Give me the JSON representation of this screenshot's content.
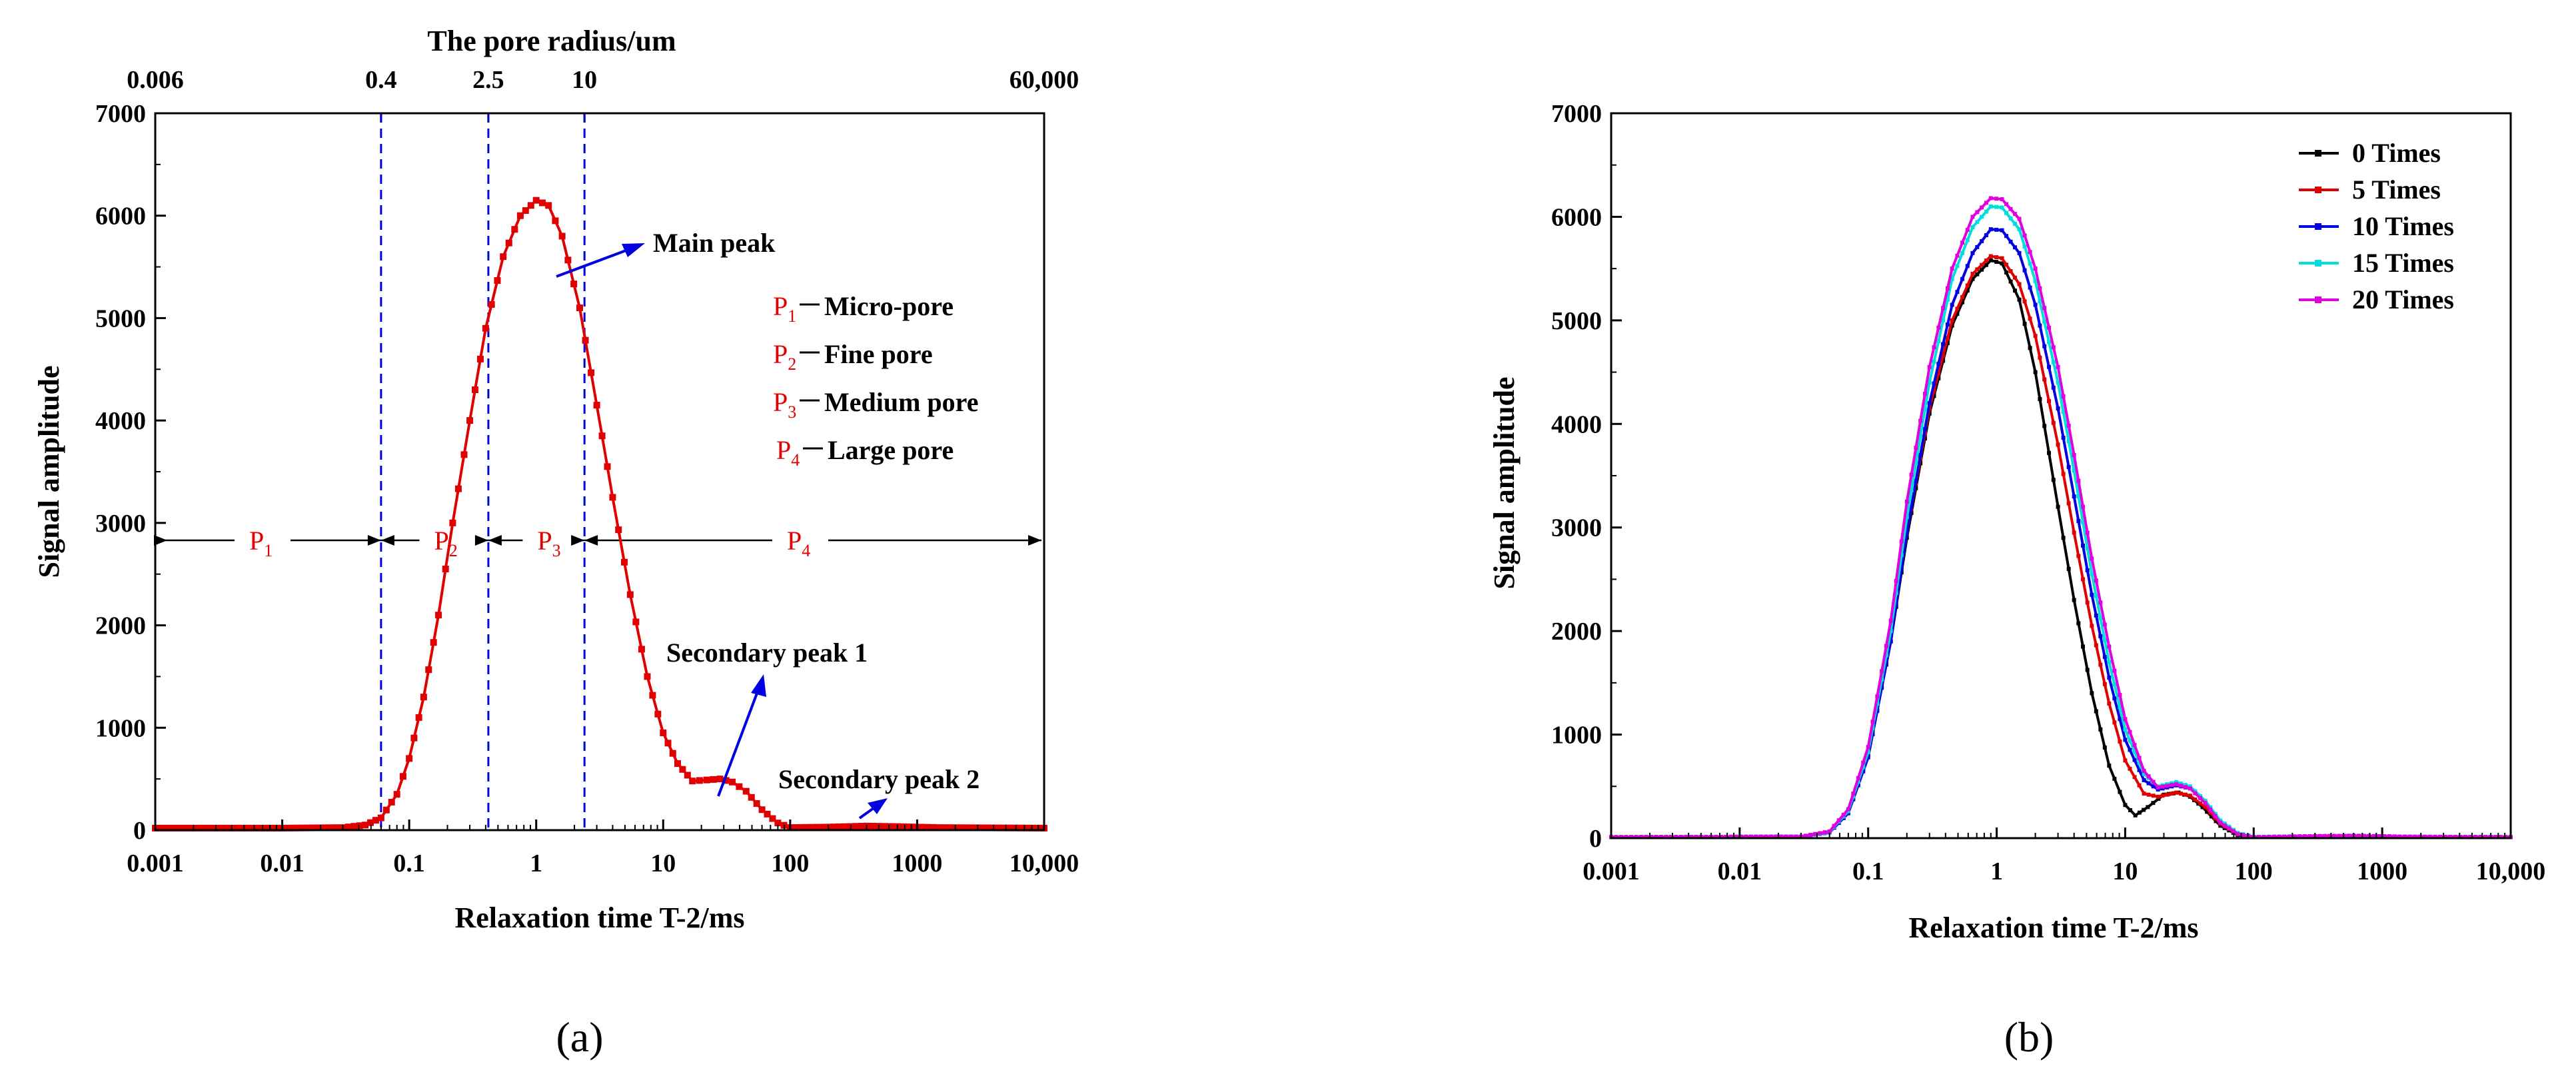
{
  "chart_data": [
    {
      "panel": "a",
      "type": "line",
      "panel_label": "(a)",
      "top_axis": {
        "label": "The pore radius/um",
        "tick_labels": [
          {
            "text": "0.006",
            "at_x": 0.001
          },
          {
            "text": "0.4",
            "at_x": 0.06
          },
          {
            "text": "2.5",
            "at_x": 0.42
          },
          {
            "text": "10",
            "at_x": 2.4
          },
          {
            "text": "60,000",
            "at_x": 10000
          }
        ]
      },
      "xlabel": "Relaxation time T-2/ms",
      "ylabel": "Signal amplitude",
      "xscale": "log",
      "xlim": [
        0.001,
        10000
      ],
      "ylim": [
        0,
        7000
      ],
      "x_tick_labels": [
        "0.001",
        "0.01",
        "0.1",
        "1",
        "10",
        "100",
        "1000",
        "10,000"
      ],
      "y_tick_labels": [
        "0",
        "1000",
        "2000",
        "3000",
        "4000",
        "5000",
        "6000",
        "7000"
      ],
      "boundaries_x": [
        0.06,
        0.42,
        2.4
      ],
      "series": [
        {
          "color": "#e00000",
          "points": [
            [
              0.001,
              20
            ],
            [
              0.01,
              20
            ],
            [
              0.03,
              25
            ],
            [
              0.045,
              50
            ],
            [
              0.06,
              120
            ],
            [
              0.08,
              350
            ],
            [
              0.1,
              700
            ],
            [
              0.13,
              1300
            ],
            [
              0.17,
              2100
            ],
            [
              0.22,
              3000
            ],
            [
              0.3,
              4000
            ],
            [
              0.4,
              4900
            ],
            [
              0.55,
              5600
            ],
            [
              0.75,
              6000
            ],
            [
              1.0,
              6150
            ],
            [
              1.25,
              6100
            ],
            [
              1.6,
              5800
            ],
            [
              2.2,
              5100
            ],
            [
              3.0,
              4150
            ],
            [
              4.0,
              3250
            ],
            [
              5.5,
              2300
            ],
            [
              7.5,
              1500
            ],
            [
              10,
              950
            ],
            [
              13,
              650
            ],
            [
              17,
              480
            ],
            [
              22,
              490
            ],
            [
              28,
              500
            ],
            [
              35,
              470
            ],
            [
              45,
              380
            ],
            [
              60,
              200
            ],
            [
              80,
              70
            ],
            [
              100,
              25
            ],
            [
              200,
              30
            ],
            [
              400,
              40
            ],
            [
              700,
              35
            ],
            [
              1500,
              25
            ],
            [
              10000,
              20
            ]
          ]
        }
      ],
      "pore_classes": [
        {
          "symbol": "P",
          "sub": "1",
          "name": "Micro-pore"
        },
        {
          "symbol": "P",
          "sub": "2",
          "name": "Fine pore"
        },
        {
          "symbol": "P",
          "sub": "3",
          "name": "Medium pore"
        },
        {
          "symbol": "P",
          "sub": "4",
          "name": "Large pore"
        }
      ],
      "range_arrows_y": 2830,
      "range_labels": [
        {
          "symbol": "P",
          "sub": "1",
          "at_x": 0.007
        },
        {
          "symbol": "P",
          "sub": "2",
          "at_x": 0.2
        },
        {
          "symbol": "P",
          "sub": "3",
          "at_x": 1.3
        },
        {
          "symbol": "P",
          "sub": "4",
          "at_x": 120
        }
      ],
      "annotations": [
        {
          "text": "Main peak"
        },
        {
          "text": "Secondary peak 1"
        },
        {
          "text": "Secondary peak 2"
        }
      ]
    },
    {
      "panel": "b",
      "type": "line",
      "panel_label": "(b)",
      "xlabel": "Relaxation time T-2/ms",
      "ylabel": "Signal amplitude",
      "xscale": "log",
      "xlim": [
        0.001,
        10000
      ],
      "ylim": [
        0,
        7000
      ],
      "x_tick_labels": [
        "0.001",
        "0.01",
        "0.1",
        "1",
        "10",
        "100",
        "1000",
        "10,000"
      ],
      "y_tick_labels": [
        "0",
        "1000",
        "2000",
        "3000",
        "4000",
        "5000",
        "6000",
        "7000"
      ],
      "legend": "top-right",
      "series": [
        {
          "name": "0  Times",
          "color": "#000000",
          "points": [
            [
              0.001,
              10
            ],
            [
              0.03,
              15
            ],
            [
              0.05,
              60
            ],
            [
              0.07,
              250
            ],
            [
              0.1,
              800
            ],
            [
              0.15,
              1900
            ],
            [
              0.2,
              2900
            ],
            [
              0.3,
              4100
            ],
            [
              0.45,
              4950
            ],
            [
              0.65,
              5400
            ],
            [
              0.9,
              5580
            ],
            [
              1.1,
              5550
            ],
            [
              1.5,
              5200
            ],
            [
              2.0,
              4500
            ],
            [
              3.0,
              3200
            ],
            [
              4.0,
              2300
            ],
            [
              5.5,
              1400
            ],
            [
              7.5,
              700
            ],
            [
              10,
              320
            ],
            [
              12,
              220
            ],
            [
              15,
              300
            ],
            [
              20,
              420
            ],
            [
              26,
              440
            ],
            [
              32,
              400
            ],
            [
              40,
              300
            ],
            [
              55,
              120
            ],
            [
              75,
              30
            ],
            [
              100,
              10
            ],
            [
              300,
              15
            ],
            [
              600,
              18
            ],
            [
              1500,
              12
            ],
            [
              10000,
              10
            ]
          ]
        },
        {
          "name": "5  Times",
          "color": "#e00000",
          "points": [
            [
              0.001,
              10
            ],
            [
              0.03,
              15
            ],
            [
              0.05,
              60
            ],
            [
              0.07,
              260
            ],
            [
              0.1,
              820
            ],
            [
              0.15,
              1950
            ],
            [
              0.2,
              2950
            ],
            [
              0.3,
              4150
            ],
            [
              0.45,
              5000
            ],
            [
              0.65,
              5450
            ],
            [
              0.9,
              5620
            ],
            [
              1.1,
              5600
            ],
            [
              1.5,
              5350
            ],
            [
              2.0,
              4850
            ],
            [
              3.0,
              3800
            ],
            [
              4.0,
              2950
            ],
            [
              5.5,
              2050
            ],
            [
              7.5,
              1300
            ],
            [
              10,
              750
            ],
            [
              14,
              430
            ],
            [
              18,
              400
            ],
            [
              25,
              440
            ],
            [
              32,
              410
            ],
            [
              42,
              300
            ],
            [
              55,
              140
            ],
            [
              75,
              40
            ],
            [
              100,
              10
            ],
            [
              300,
              15
            ],
            [
              600,
              20
            ],
            [
              1500,
              12
            ],
            [
              10000,
              10
            ]
          ]
        },
        {
          "name": "10  Times",
          "color": "#0000e0",
          "points": [
            [
              0.001,
              10
            ],
            [
              0.03,
              15
            ],
            [
              0.05,
              55
            ],
            [
              0.07,
              240
            ],
            [
              0.1,
              780
            ],
            [
              0.15,
              1900
            ],
            [
              0.2,
              2950
            ],
            [
              0.3,
              4200
            ],
            [
              0.45,
              5150
            ],
            [
              0.65,
              5650
            ],
            [
              0.9,
              5880
            ],
            [
              1.1,
              5870
            ],
            [
              1.5,
              5650
            ],
            [
              2.0,
              5150
            ],
            [
              3.0,
              4150
            ],
            [
              4.0,
              3300
            ],
            [
              5.5,
              2350
            ],
            [
              7.5,
              1550
            ],
            [
              10,
              950
            ],
            [
              14,
              560
            ],
            [
              18,
              470
            ],
            [
              25,
              510
            ],
            [
              32,
              480
            ],
            [
              42,
              350
            ],
            [
              55,
              160
            ],
            [
              75,
              45
            ],
            [
              100,
              12
            ],
            [
              300,
              18
            ],
            [
              600,
              22
            ],
            [
              1500,
              14
            ],
            [
              10000,
              10
            ]
          ]
        },
        {
          "name": "15  Times",
          "color": "#00dede",
          "points": [
            [
              0.001,
              10
            ],
            [
              0.03,
              15
            ],
            [
              0.05,
              60
            ],
            [
              0.07,
              260
            ],
            [
              0.1,
              830
            ],
            [
              0.15,
              2000
            ],
            [
              0.2,
              3100
            ],
            [
              0.3,
              4400
            ],
            [
              0.45,
              5400
            ],
            [
              0.65,
              5900
            ],
            [
              0.9,
              6100
            ],
            [
              1.1,
              6090
            ],
            [
              1.5,
              5880
            ],
            [
              2.0,
              5380
            ],
            [
              3.0,
              4400
            ],
            [
              4.0,
              3550
            ],
            [
              5.5,
              2550
            ],
            [
              7.5,
              1700
            ],
            [
              10,
              1050
            ],
            [
              14,
              620
            ],
            [
              18,
              500
            ],
            [
              25,
              540
            ],
            [
              32,
              500
            ],
            [
              42,
              360
            ],
            [
              55,
              170
            ],
            [
              75,
              50
            ],
            [
              100,
              12
            ],
            [
              300,
              20
            ],
            [
              600,
              24
            ],
            [
              1500,
              15
            ],
            [
              10000,
              10
            ]
          ]
        },
        {
          "name": "20  Times",
          "color": "#e000e0",
          "points": [
            [
              0.001,
              10
            ],
            [
              0.03,
              15
            ],
            [
              0.05,
              65
            ],
            [
              0.07,
              280
            ],
            [
              0.1,
              880
            ],
            [
              0.15,
              2100
            ],
            [
              0.2,
              3250
            ],
            [
              0.3,
              4550
            ],
            [
              0.45,
              5500
            ],
            [
              0.65,
              6000
            ],
            [
              0.9,
              6180
            ],
            [
              1.1,
              6170
            ],
            [
              1.5,
              5980
            ],
            [
              2.0,
              5500
            ],
            [
              3.0,
              4550
            ],
            [
              4.0,
              3700
            ],
            [
              5.5,
              2700
            ],
            [
              7.5,
              1850
            ],
            [
              10,
              1150
            ],
            [
              14,
              650
            ],
            [
              18,
              490
            ],
            [
              25,
              520
            ],
            [
              32,
              480
            ],
            [
              42,
              340
            ],
            [
              55,
              150
            ],
            [
              75,
              40
            ],
            [
              100,
              10
            ],
            [
              300,
              20
            ],
            [
              600,
              24
            ],
            [
              1500,
              15
            ],
            [
              10000,
              10
            ]
          ]
        }
      ]
    }
  ]
}
